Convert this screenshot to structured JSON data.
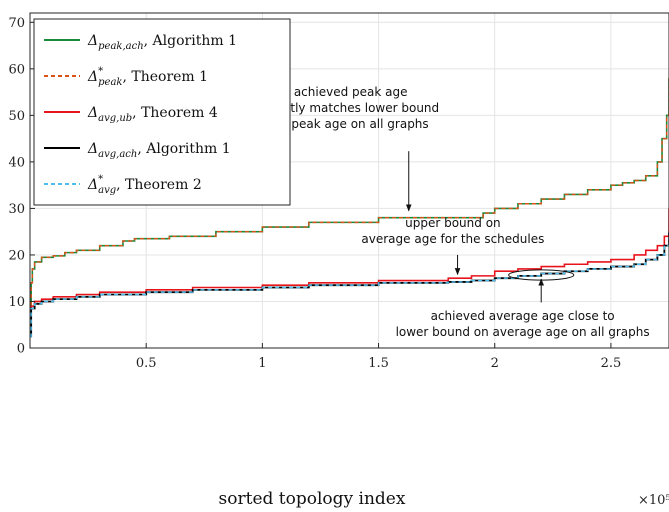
{
  "chart_data": {
    "type": "line",
    "xlabel": "sorted topology index",
    "x_multiplier": "×10⁵",
    "xlim": [
      0,
      2.75
    ],
    "ylim": [
      0,
      72
    ],
    "xticks": [
      0.5,
      1,
      1.5,
      2,
      2.5
    ],
    "xtick_labels": [
      "0.5",
      "1",
      "1.5",
      "2",
      "2.5"
    ],
    "yticks": [
      0,
      10,
      20,
      30,
      40,
      50,
      60,
      70
    ],
    "ytick_labels": [
      "0",
      "10",
      "20",
      "30",
      "40",
      "50",
      "60",
      "70"
    ],
    "grid": true,
    "legend_position": "top-left",
    "legend": [
      {
        "sym": "Δ",
        "sub": "peak,ach",
        "sup": "",
        "text": ", Algorithm 1",
        "color": "#1a8a3c",
        "dash": ""
      },
      {
        "sym": "Δ",
        "sub": "peak",
        "sup": "*",
        "text": ", Theorem 1",
        "color": "#d95319",
        "dash": "4,3"
      },
      {
        "sym": "Δ",
        "sub": "avg,ub",
        "sup": "",
        "text": ", Theorem 4",
        "color": "#e8141c",
        "dash": ""
      },
      {
        "sym": "Δ",
        "sub": "avg,ach",
        "sup": "",
        "text": ", Algorithm 1",
        "color": "#000000",
        "dash": ""
      },
      {
        "sym": "Δ",
        "sub": "avg",
        "sup": "*",
        "text": ", Theorem 2",
        "color": "#4dbeee",
        "dash": "4,3"
      }
    ],
    "series": [
      {
        "name": "peak achieved",
        "color": "#1a8a3c",
        "width": 1.6,
        "dash": "",
        "x": [
          0,
          0.005,
          0.01,
          0.02,
          0.05,
          0.1,
          0.15,
          0.2,
          0.3,
          0.4,
          0.45,
          0.6,
          0.8,
          1.0,
          1.2,
          1.35,
          1.48,
          1.5,
          1.9,
          1.95,
          2.0,
          2.1,
          2.2,
          2.3,
          2.4,
          2.5,
          2.55,
          2.6,
          2.65,
          2.7,
          2.72,
          2.74,
          2.75
        ],
        "y": [
          8,
          14,
          17,
          18.5,
          19.5,
          19.8,
          20.5,
          21,
          22,
          23,
          23.5,
          24,
          25,
          26,
          27,
          27,
          27,
          28,
          28,
          29,
          30,
          31,
          32,
          33,
          34,
          35,
          35.5,
          36,
          37,
          40,
          45,
          50,
          58
        ]
      },
      {
        "name": "peak lower bound",
        "color": "#d95319",
        "width": 1.4,
        "dash": "4,3",
        "x": [
          0,
          0.005,
          0.01,
          0.02,
          0.05,
          0.1,
          0.15,
          0.2,
          0.3,
          0.4,
          0.45,
          0.6,
          0.8,
          1.0,
          1.2,
          1.35,
          1.48,
          1.5,
          1.9,
          1.95,
          2.0,
          2.1,
          2.2,
          2.3,
          2.4,
          2.5,
          2.55,
          2.6,
          2.65,
          2.7,
          2.72,
          2.74,
          2.75
        ],
        "y": [
          8,
          14,
          17,
          18.5,
          19.5,
          19.8,
          20.5,
          21,
          22,
          23,
          23.5,
          24,
          25,
          26,
          27,
          27,
          27,
          28,
          28,
          29,
          30,
          31,
          32,
          33,
          34,
          35,
          35.5,
          36,
          37,
          40,
          45,
          50,
          58
        ]
      },
      {
        "name": "average upper bound",
        "color": "#e8141c",
        "width": 1.6,
        "dash": "",
        "x": [
          0,
          0.005,
          0.02,
          0.05,
          0.1,
          0.2,
          0.3,
          0.5,
          0.7,
          1.0,
          1.2,
          1.5,
          1.8,
          1.9,
          2.0,
          2.1,
          2.2,
          2.3,
          2.4,
          2.5,
          2.6,
          2.65,
          2.7,
          2.73,
          2.75
        ],
        "y": [
          3,
          9,
          10,
          10.5,
          11,
          11.5,
          12,
          12.5,
          13,
          13.5,
          14,
          14.5,
          15,
          15.5,
          16.5,
          17,
          17.5,
          18,
          18.5,
          19,
          20,
          21,
          22,
          24,
          30
        ]
      },
      {
        "name": "average achieved",
        "color": "#000000",
        "width": 1.8,
        "dash": "",
        "x": [
          0,
          0.005,
          0.02,
          0.05,
          0.1,
          0.2,
          0.3,
          0.5,
          0.7,
          1.0,
          1.2,
          1.5,
          1.8,
          1.9,
          2.0,
          2.1,
          2.2,
          2.3,
          2.4,
          2.5,
          2.6,
          2.65,
          2.7,
          2.73,
          2.75
        ],
        "y": [
          2.5,
          8.5,
          9.5,
          10,
          10.5,
          11,
          11.5,
          12,
          12.5,
          13,
          13.5,
          14,
          14.2,
          14.5,
          15,
          15.5,
          16,
          16.5,
          17,
          17.5,
          18,
          19,
          20,
          22,
          25
        ]
      },
      {
        "name": "average lower bound",
        "color": "#4dbeee",
        "width": 1.4,
        "dash": "4,3",
        "x": [
          0,
          0.005,
          0.02,
          0.05,
          0.1,
          0.2,
          0.3,
          0.5,
          0.7,
          1.0,
          1.2,
          1.5,
          1.8,
          1.9,
          2.0,
          2.1,
          2.2,
          2.3,
          2.4,
          2.5,
          2.6,
          2.65,
          2.7,
          2.73,
          2.75
        ],
        "y": [
          2.5,
          8.5,
          9.5,
          10,
          10.5,
          11,
          11.5,
          12,
          12.5,
          13,
          13.5,
          14,
          14.2,
          14.5,
          15,
          15.5,
          16,
          16.5,
          17,
          17.5,
          18,
          19,
          20,
          22,
          25
        ]
      }
    ],
    "annotations": [
      {
        "lines": [
          "achieved peak age",
          "exactly matches lower bound",
          "on peak age on all graphs"
        ],
        "text_x": 1.38,
        "text_y": 54.2,
        "arrow_from": [
          1.63,
          42.3
        ],
        "arrow_to": [
          1.63,
          29.5
        ]
      },
      {
        "lines": [
          "upper bound on",
          "average age for the schedules"
        ],
        "text_x": 1.82,
        "text_y": 26.0,
        "arrow_from": [
          1.84,
          20.0
        ],
        "arrow_to": [
          1.84,
          15.8
        ]
      },
      {
        "lines": [
          "achieved average age close to",
          "lower bound on average age on all graphs"
        ],
        "text_x": 2.12,
        "text_y": 6.0,
        "arrow_from": [
          2.2,
          9.8
        ],
        "arrow_to": [
          2.2,
          14.8
        ]
      }
    ],
    "ellipse": {
      "cx": 2.2,
      "cy": 15.7,
      "rx": 0.14,
      "ry": 1.1
    }
  }
}
